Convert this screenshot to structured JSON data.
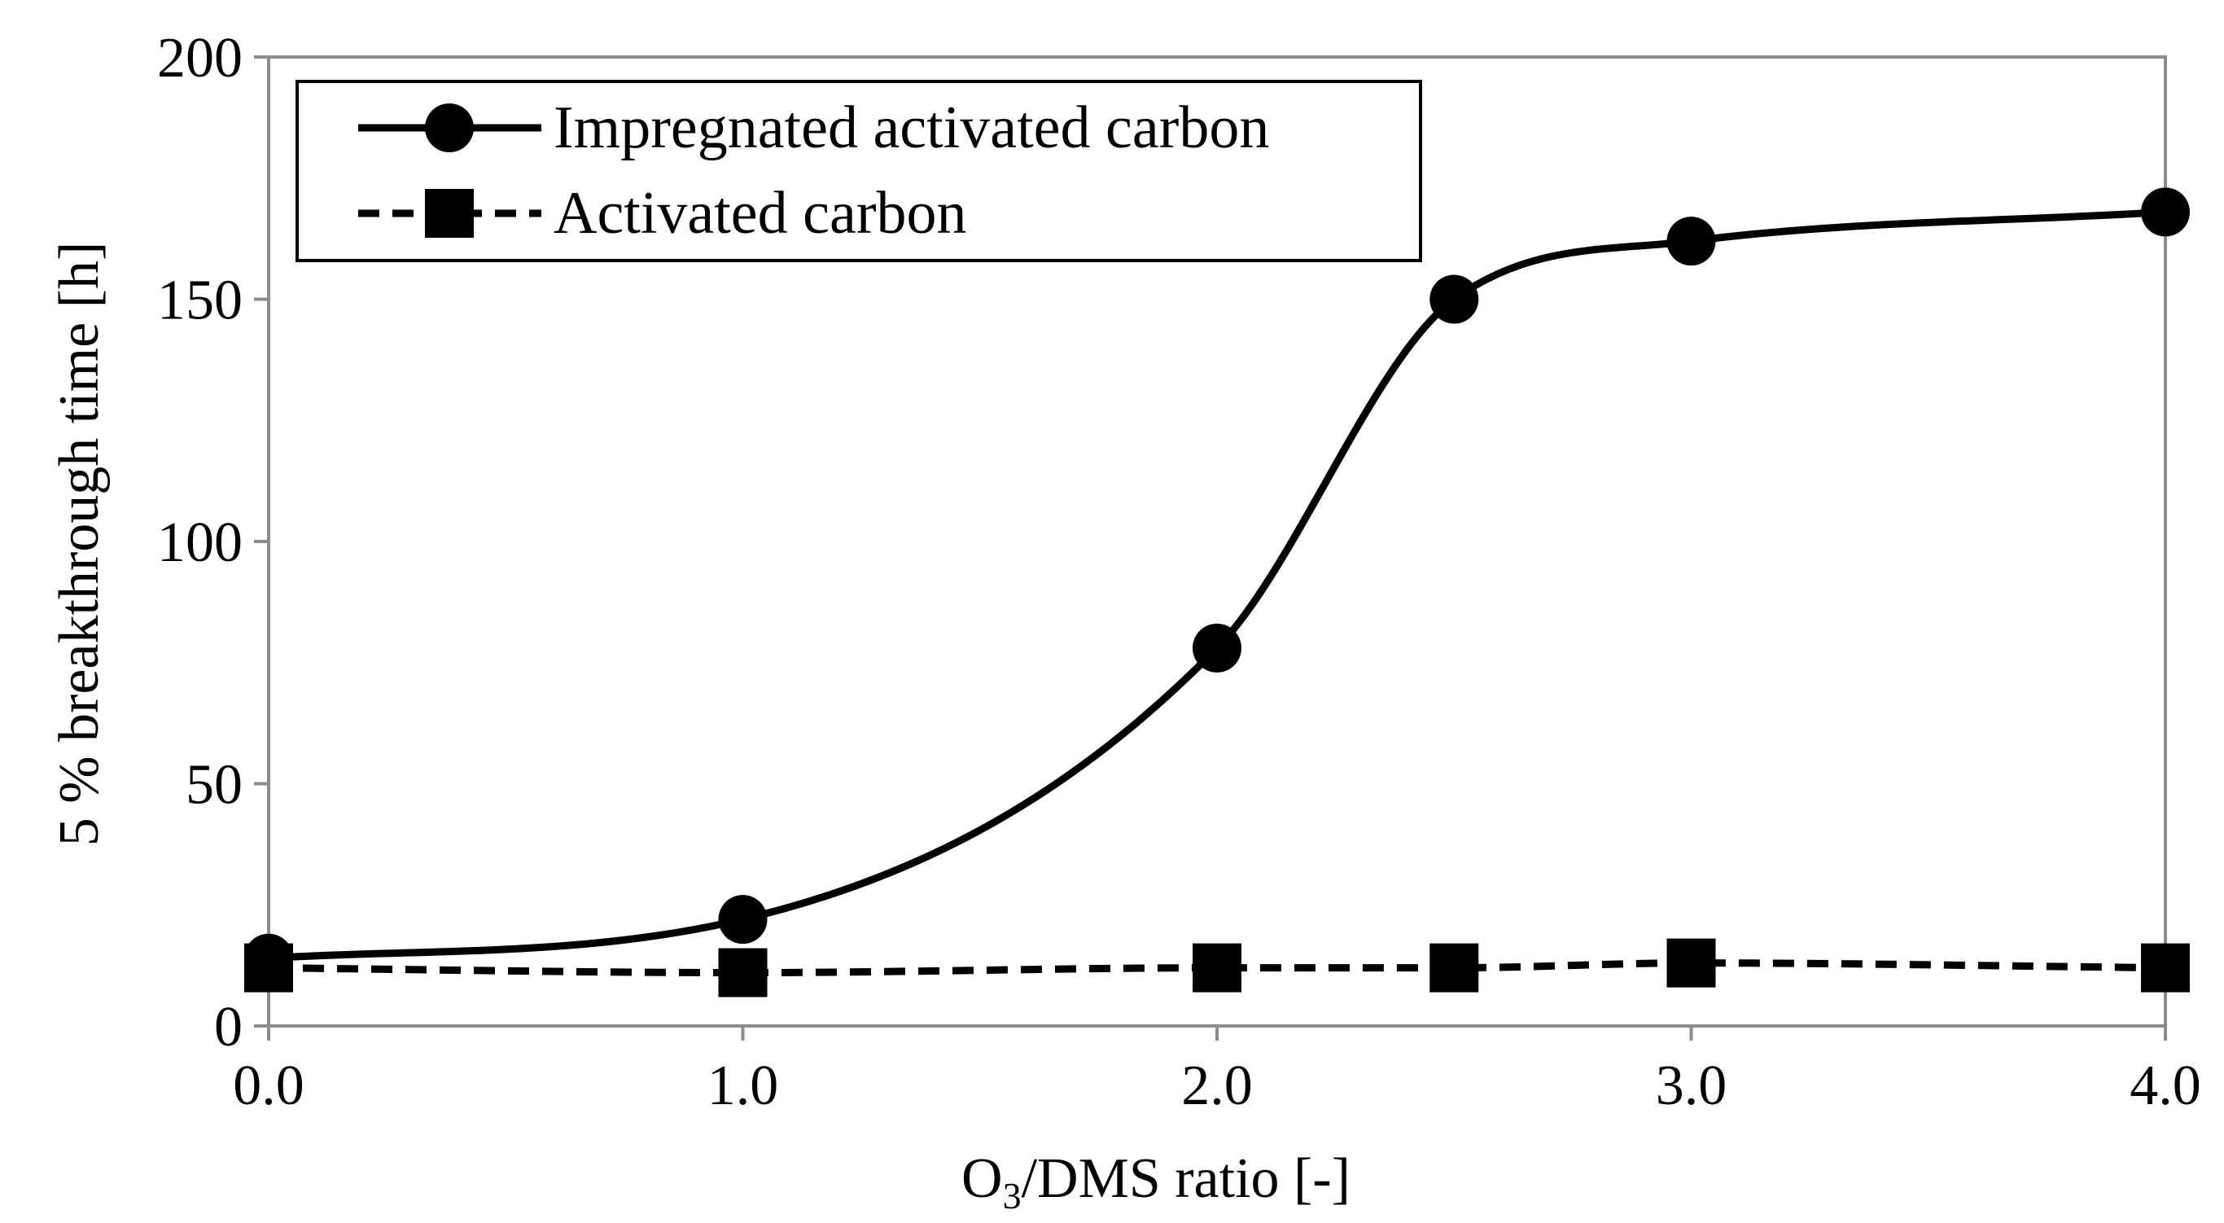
{
  "chart_data": {
    "type": "line",
    "title": "",
    "xlabel_main": "O",
    "xlabel_sub": "3",
    "xlabel_rest": "/DMS ratio [-]",
    "ylabel": "5 % breakthrough time [h]",
    "xlim": [
      0,
      4
    ],
    "ylim": [
      0,
      200
    ],
    "x_ticks": [
      {
        "value": 0,
        "label": "0.0"
      },
      {
        "value": 1,
        "label": "1.0"
      },
      {
        "value": 2,
        "label": "2.0"
      },
      {
        "value": 3,
        "label": "3.0"
      },
      {
        "value": 4,
        "label": "4.0"
      }
    ],
    "y_ticks": [
      {
        "value": 0,
        "label": "0"
      },
      {
        "value": 50,
        "label": "50"
      },
      {
        "value": 100,
        "label": "100"
      },
      {
        "value": 150,
        "label": "150"
      },
      {
        "value": 200,
        "label": "200"
      }
    ],
    "grid": false,
    "legend_position": "top-left",
    "series": [
      {
        "name": "Impregnated activated carbon",
        "marker": "circle",
        "line_style": "solid",
        "smooth": true,
        "color": "#000000",
        "x": [
          0,
          1,
          2,
          2.5,
          3,
          4
        ],
        "y": [
          14,
          22,
          78,
          150,
          162,
          168
        ]
      },
      {
        "name": "Activated carbon",
        "marker": "square",
        "line_style": "dashed",
        "smooth": true,
        "color": "#000000",
        "x": [
          0,
          1,
          2,
          2.5,
          3,
          4
        ],
        "y": [
          12,
          11,
          12,
          12,
          13,
          12
        ]
      }
    ]
  }
}
